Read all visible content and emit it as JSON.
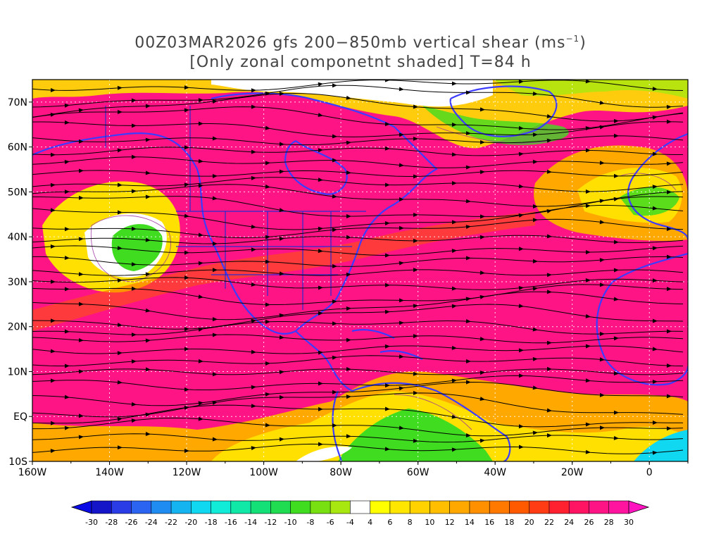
{
  "title": {
    "line1_prefix": "00Z03MAR2026 gfs 200−850mb vertical shear (ms",
    "line1_sup": "−1",
    "line1_suffix": ")",
    "line2": "[Only zonal componetnt shaded] T=84 h"
  },
  "map_data": {
    "region": "North Atlantic / North America",
    "lon_range": [
      -160,
      10
    ],
    "lat_range": [
      -10,
      75
    ],
    "lon_labels": [
      "160W",
      "140W",
      "120W",
      "100W",
      "80W",
      "60W",
      "40W",
      "20W",
      "0"
    ],
    "lon_values": [
      -160,
      -140,
      -120,
      -100,
      -80,
      -60,
      -40,
      -20,
      0
    ],
    "lat_labels": [
      "10S",
      "EQ",
      "10N",
      "20N",
      "30N",
      "40N",
      "50N",
      "60N",
      "70N"
    ],
    "lat_values": [
      -10,
      0,
      10,
      20,
      30,
      40,
      50,
      60,
      70
    ],
    "field": "zonal vertical wind shear",
    "overlay": "streamlines"
  },
  "colorbar": {
    "labels": [
      "-30",
      "-28",
      "-26",
      "-24",
      "-22",
      "-20",
      "-18",
      "-16",
      "-14",
      "-12",
      "-10",
      "-8",
      "-6",
      "-4",
      "4",
      "6",
      "8",
      "10",
      "12",
      "14",
      "16",
      "18",
      "20",
      "22",
      "24",
      "26",
      "28",
      "30"
    ],
    "colors": [
      "#1414c8",
      "#2a3ce6",
      "#2a64f0",
      "#1e8cf0",
      "#14b4f0",
      "#10d8f0",
      "#10ecd8",
      "#10e8a8",
      "#14e078",
      "#20dc50",
      "#40dc20",
      "#78e010",
      "#a8e810",
      "#ffffff",
      "#ffff00",
      "#ffe600",
      "#ffd200",
      "#ffbe00",
      "#ffa800",
      "#ff9000",
      "#ff7800",
      "#ff5a00",
      "#ff3c14",
      "#ff2030",
      "#ff1464",
      "#ff1486",
      "#ff14a0"
    ],
    "left_arrow_color": "#0a0ae6",
    "right_arrow_color": "#ff14c0"
  }
}
